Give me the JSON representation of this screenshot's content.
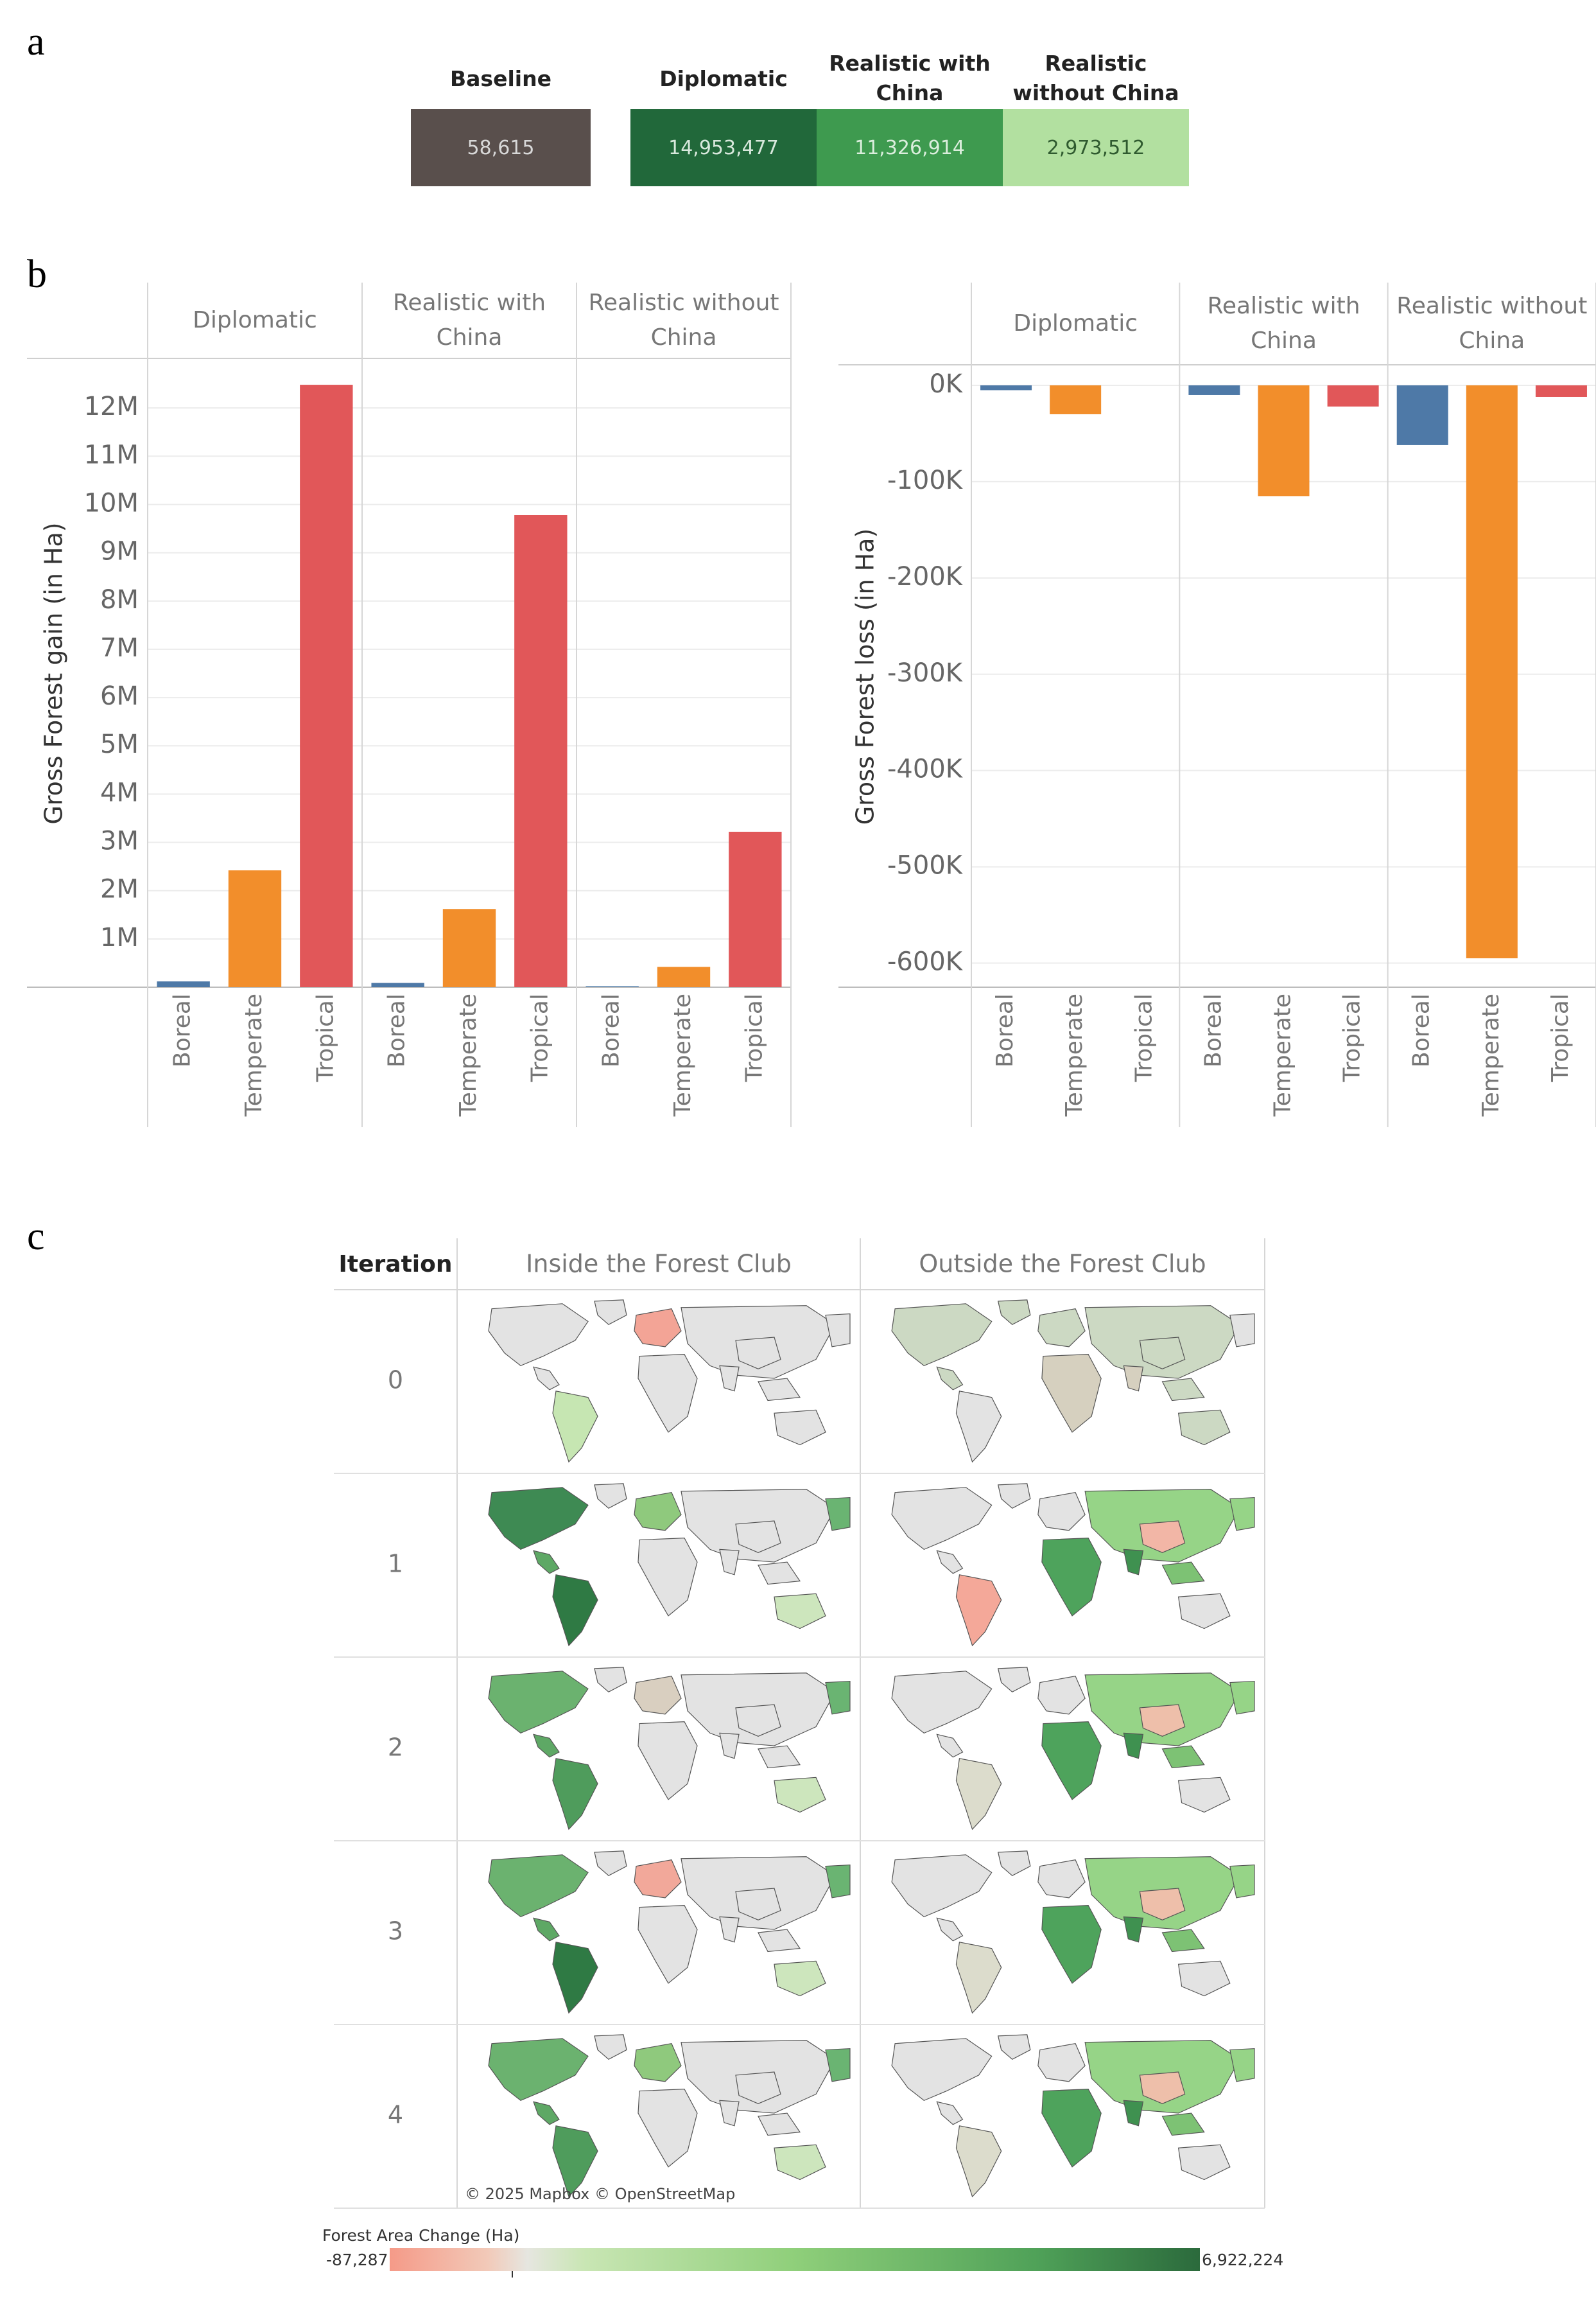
{
  "panels": {
    "a": "a",
    "b": "b",
    "c": "c"
  },
  "summary": {
    "items": [
      {
        "label": "Baseline",
        "value": "58,615",
        "color": "#594f4c",
        "text_color": "#d8d8d8"
      },
      {
        "label": "Diplomatic",
        "value": "14,953,477",
        "color": "#21683a",
        "text_color": "#d8e8dc"
      },
      {
        "label": "Realistic with China",
        "value": "11,326,914",
        "color": "#3e9a4f",
        "text_color": "#dbeedd"
      },
      {
        "label": "Realistic without China",
        "value": "2,973,512",
        "color": "#b2e0a0",
        "text_color": "#2f5a2f"
      }
    ]
  },
  "chart_data": [
    {
      "type": "bar",
      "facets": [
        "Diplomatic",
        "Realistic with China",
        "Realistic without China"
      ],
      "categories": [
        "Boreal",
        "Temperate",
        "Tropical"
      ],
      "colors": [
        "#4e79a7",
        "#f28e2b",
        "#e15759"
      ],
      "values": [
        [
          120000,
          2420000,
          12480000
        ],
        [
          90000,
          1620000,
          9780000
        ],
        [
          20000,
          420000,
          3220000
        ]
      ],
      "ylabel": "Gross Forest gain (in Ha)",
      "ylim": [
        0,
        13000000
      ],
      "ytick_values": [
        1000000,
        2000000,
        3000000,
        4000000,
        5000000,
        6000000,
        7000000,
        8000000,
        9000000,
        10000000,
        11000000,
        12000000
      ],
      "ytick_labels": [
        "1M",
        "2M",
        "3M",
        "4M",
        "5M",
        "6M",
        "7M",
        "8M",
        "9M",
        "10M",
        "11M",
        "12M"
      ],
      "grid": true
    },
    {
      "type": "bar",
      "facets": [
        "Diplomatic",
        "Realistic with China",
        "Realistic without China"
      ],
      "categories": [
        "Boreal",
        "Temperate",
        "Tropical"
      ],
      "colors": [
        "#4e79a7",
        "#f28e2b",
        "#e15759"
      ],
      "values": [
        [
          -5000,
          -30000,
          0
        ],
        [
          -10000,
          -115000,
          -22000
        ],
        [
          -62000,
          -595000,
          -12000
        ]
      ],
      "ylabel": "Gross Forest loss (in Ha)",
      "ylim": [
        -625000,
        20000
      ],
      "ytick_values": [
        0,
        -100000,
        -200000,
        -300000,
        -400000,
        -500000,
        -600000
      ],
      "ytick_labels": [
        "0K",
        "-100K",
        "-200K",
        "-300K",
        "-400K",
        "-500K",
        "-600K"
      ],
      "grid": true
    },
    {
      "type": "heatmap",
      "row_header": "Iteration",
      "columns": [
        "Inside the Forest Club",
        "Outside the Forest Club"
      ],
      "rows": [
        "0",
        "1",
        "2",
        "3",
        "4"
      ],
      "attribution": "© 2025 Mapbox © OpenStreetMap",
      "legend": {
        "title": "Forest Area Change (Ha)",
        "min_label": "-87,287",
        "max_label": "6,922,224",
        "min": -87287,
        "max": 6922224
      }
    }
  ]
}
